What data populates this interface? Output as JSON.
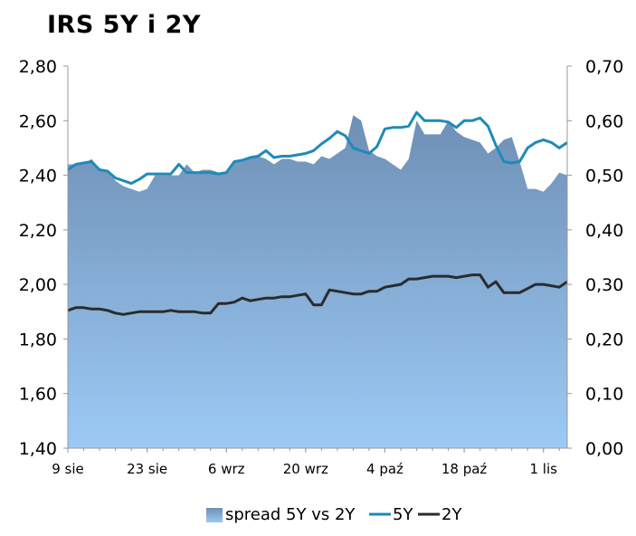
{
  "title": "IRS 5Y i 2Y",
  "colors": {
    "spread_top": "#6e8fb5",
    "spread_bottom": "#9ccaf5",
    "line_5y": "#1f8ab9",
    "line_2y": "#2b2b2b",
    "axis": "#999999"
  },
  "chart_data": {
    "type": "line",
    "title": "IRS 5Y i 2Y",
    "y_left": {
      "min": 1.4,
      "max": 2.8,
      "step": 0.2,
      "tick_labels": [
        "1,40",
        "1,60",
        "1,80",
        "2,00",
        "2,20",
        "2,40",
        "2,60",
        "2,80"
      ]
    },
    "y_right": {
      "min": 0.0,
      "max": 0.7,
      "step": 0.1,
      "tick_labels": [
        "0,00",
        "0,10",
        "0,20",
        "0,30",
        "0,40",
        "0,50",
        "0,60",
        "0,70"
      ]
    },
    "x_range": [
      0,
      63
    ],
    "x_ticks": [
      {
        "x": 0,
        "label": "9 sie"
      },
      {
        "x": 10,
        "label": "23 sie"
      },
      {
        "x": 20,
        "label": "6 wrz"
      },
      {
        "x": 30,
        "label": "20 wrz"
      },
      {
        "x": 40,
        "label": "4 paź"
      },
      {
        "x": 50,
        "label": "18 paź"
      },
      {
        "x": 60,
        "label": "1 lis"
      }
    ],
    "grid": false,
    "legend": {
      "position": "bottom",
      "entries": [
        "spread 5Y vs 2Y",
        "5Y",
        "2Y"
      ]
    },
    "series": [
      {
        "name": "spread 5Y vs 2Y",
        "type": "area",
        "axis": "right",
        "x": [
          0,
          1,
          2,
          3,
          4,
          5,
          6,
          7,
          8,
          9,
          10,
          11,
          12,
          13,
          14,
          15,
          16,
          17,
          18,
          19,
          20,
          21,
          22,
          23,
          24,
          25,
          26,
          27,
          28,
          29,
          30,
          31,
          32,
          33,
          34,
          35,
          36,
          37,
          38,
          39,
          40,
          41,
          42,
          43,
          44,
          45,
          46,
          47,
          48,
          49,
          50,
          51,
          52,
          53,
          54,
          55,
          56,
          57,
          58,
          59,
          60,
          61,
          62,
          63
        ],
        "values": [
          0.52,
          0.52,
          0.52,
          0.53,
          0.51,
          0.51,
          0.49,
          0.48,
          0.475,
          0.47,
          0.475,
          0.5,
          0.5,
          0.5,
          0.5,
          0.52,
          0.505,
          0.51,
          0.51,
          0.505,
          0.505,
          0.525,
          0.53,
          0.53,
          0.535,
          0.53,
          0.52,
          0.53,
          0.53,
          0.525,
          0.525,
          0.52,
          0.535,
          0.53,
          0.54,
          0.55,
          0.61,
          0.6,
          0.545,
          0.535,
          0.53,
          0.52,
          0.51,
          0.53,
          0.6,
          0.575,
          0.575,
          0.575,
          0.6,
          0.58,
          0.57,
          0.565,
          0.56,
          0.54,
          0.55,
          0.565,
          0.57,
          0.525,
          0.475,
          0.475,
          0.47,
          0.485,
          0.505,
          0.5
        ]
      },
      {
        "name": "5Y",
        "type": "line",
        "axis": "left",
        "x": [
          0,
          1,
          2,
          3,
          4,
          5,
          6,
          7,
          8,
          9,
          10,
          11,
          12,
          13,
          14,
          15,
          16,
          17,
          18,
          19,
          20,
          21,
          22,
          23,
          24,
          25,
          26,
          27,
          28,
          29,
          30,
          31,
          32,
          33,
          34,
          35,
          36,
          37,
          38,
          39,
          40,
          41,
          42,
          43,
          44,
          45,
          46,
          47,
          48,
          49,
          50,
          51,
          52,
          53,
          54,
          55,
          56,
          57,
          58,
          59,
          60,
          61,
          62,
          63
        ],
        "values": [
          2.42,
          2.44,
          2.445,
          2.45,
          2.42,
          2.415,
          2.39,
          2.38,
          2.37,
          2.385,
          2.405,
          2.405,
          2.405,
          2.405,
          2.44,
          2.41,
          2.41,
          2.41,
          2.41,
          2.405,
          2.41,
          2.45,
          2.455,
          2.465,
          2.47,
          2.49,
          2.465,
          2.47,
          2.47,
          2.475,
          2.48,
          2.49,
          2.515,
          2.535,
          2.56,
          2.545,
          2.5,
          2.49,
          2.48,
          2.505,
          2.57,
          2.575,
          2.575,
          2.58,
          2.63,
          2.6,
          2.6,
          2.6,
          2.595,
          2.575,
          2.6,
          2.6,
          2.61,
          2.58,
          2.51,
          2.45,
          2.445,
          2.45,
          2.5,
          2.52,
          2.53,
          2.52,
          2.5,
          2.52
        ]
      },
      {
        "name": "2Y",
        "type": "line",
        "axis": "left",
        "x": [
          0,
          1,
          2,
          3,
          4,
          5,
          6,
          7,
          8,
          9,
          10,
          11,
          12,
          13,
          14,
          15,
          16,
          17,
          18,
          19,
          20,
          21,
          22,
          23,
          24,
          25,
          26,
          27,
          28,
          29,
          30,
          31,
          32,
          33,
          34,
          35,
          36,
          37,
          38,
          39,
          40,
          41,
          42,
          43,
          44,
          45,
          46,
          47,
          48,
          49,
          50,
          51,
          52,
          53,
          54,
          55,
          56,
          57,
          58,
          59,
          60,
          61,
          62,
          63
        ],
        "values": [
          1.905,
          1.915,
          1.915,
          1.91,
          1.91,
          1.905,
          1.895,
          1.89,
          1.895,
          1.9,
          1.9,
          1.9,
          1.9,
          1.905,
          1.9,
          1.9,
          1.9,
          1.895,
          1.895,
          1.93,
          1.93,
          1.935,
          1.95,
          1.94,
          1.945,
          1.95,
          1.95,
          1.955,
          1.955,
          1.96,
          1.965,
          1.925,
          1.925,
          1.98,
          1.975,
          1.97,
          1.965,
          1.965,
          1.975,
          1.975,
          1.99,
          1.995,
          2.0,
          2.02,
          2.02,
          2.025,
          2.03,
          2.03,
          2.03,
          2.025,
          2.03,
          2.035,
          2.035,
          1.99,
          2.01,
          1.97,
          1.97,
          1.97,
          1.985,
          2.0,
          2.0,
          1.995,
          1.99,
          2.01
        ]
      }
    ]
  }
}
